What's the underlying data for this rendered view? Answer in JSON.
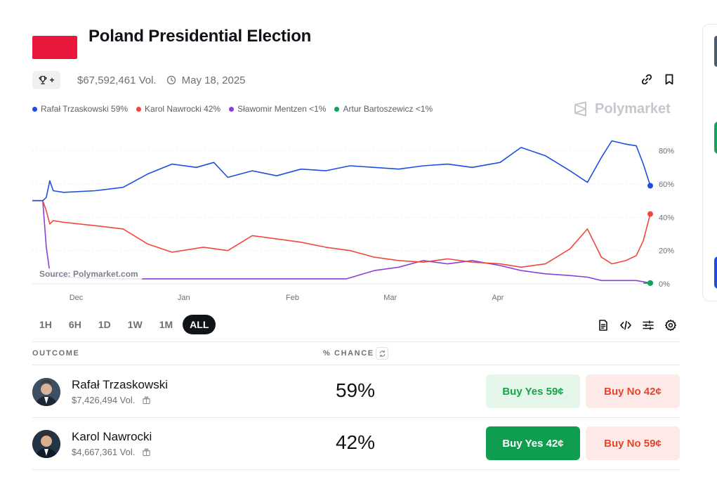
{
  "market": {
    "title": "Poland Presidential Election",
    "flag_color": "#e8183b",
    "volume": "$67,592,461 Vol.",
    "date": "May 18, 2025",
    "trophy_suffix": "+"
  },
  "legend": [
    {
      "label": "Rafał Trzaskowski 59%",
      "color": "#1c4fe0"
    },
    {
      "label": "Karol Nawrocki 42%",
      "color": "#f0483e"
    },
    {
      "label": "Sławomir Mentzen <1%",
      "color": "#8c3fd9"
    },
    {
      "label": "Artur Bartoszewicz <1%",
      "color": "#0ea55b"
    }
  ],
  "brand": "Polymarket",
  "chart_source": "Source: Polymarket.com",
  "chart_data": {
    "type": "line",
    "x_range": [
      "2024-11-22",
      "2025-05-18"
    ],
    "x_ticks": [
      "Dec",
      "Jan",
      "Feb",
      "Mar",
      "Apr"
    ],
    "x_tick_dates": [
      "2024-12-01",
      "2025-01-01",
      "2025-02-01",
      "2025-03-01",
      "2025-04-01"
    ],
    "y_ticks": [
      "0%",
      "20%",
      "40%",
      "60%",
      "80%"
    ],
    "ylim": [
      0,
      90
    ],
    "grid": "dotted",
    "series": [
      {
        "name": "Rafał Trzaskowski",
        "color": "#1c4fe0",
        "points": [
          [
            "2024-11-22",
            50
          ],
          [
            "2024-11-25",
            50
          ],
          [
            "2024-11-26",
            52
          ],
          [
            "2024-11-27",
            62
          ],
          [
            "2024-11-28",
            56
          ],
          [
            "2024-12-01",
            55
          ],
          [
            "2024-12-10",
            56
          ],
          [
            "2024-12-18",
            58
          ],
          [
            "2024-12-25",
            66
          ],
          [
            "2025-01-01",
            72
          ],
          [
            "2025-01-08",
            70
          ],
          [
            "2025-01-13",
            73
          ],
          [
            "2025-01-17",
            64
          ],
          [
            "2025-01-24",
            68
          ],
          [
            "2025-01-31",
            65
          ],
          [
            "2025-02-07",
            69
          ],
          [
            "2025-02-14",
            68
          ],
          [
            "2025-02-21",
            71
          ],
          [
            "2025-02-28",
            70
          ],
          [
            "2025-03-07",
            69
          ],
          [
            "2025-03-14",
            71
          ],
          [
            "2025-03-21",
            72
          ],
          [
            "2025-03-28",
            70
          ],
          [
            "2025-04-05",
            73
          ],
          [
            "2025-04-11",
            82
          ],
          [
            "2025-04-18",
            77
          ],
          [
            "2025-04-25",
            68
          ],
          [
            "2025-04-30",
            61
          ],
          [
            "2025-05-04",
            76
          ],
          [
            "2025-05-07",
            86
          ],
          [
            "2025-05-11",
            84
          ],
          [
            "2025-05-14",
            83
          ],
          [
            "2025-05-16",
            72
          ],
          [
            "2025-05-18",
            59
          ]
        ]
      },
      {
        "name": "Karol Nawrocki",
        "color": "#f0483e",
        "points": [
          [
            "2024-11-22",
            50
          ],
          [
            "2024-11-25",
            50
          ],
          [
            "2024-11-26",
            44
          ],
          [
            "2024-11-27",
            36
          ],
          [
            "2024-11-28",
            38
          ],
          [
            "2024-12-01",
            37
          ],
          [
            "2024-12-10",
            35
          ],
          [
            "2024-12-18",
            33
          ],
          [
            "2024-12-25",
            24
          ],
          [
            "2025-01-01",
            19
          ],
          [
            "2025-01-10",
            22
          ],
          [
            "2025-01-17",
            20
          ],
          [
            "2025-01-24",
            29
          ],
          [
            "2025-01-31",
            27
          ],
          [
            "2025-02-07",
            25
          ],
          [
            "2025-02-14",
            22
          ],
          [
            "2025-02-21",
            20
          ],
          [
            "2025-02-28",
            16
          ],
          [
            "2025-03-07",
            14
          ],
          [
            "2025-03-14",
            13
          ],
          [
            "2025-03-21",
            15
          ],
          [
            "2025-03-28",
            13
          ],
          [
            "2025-04-05",
            12
          ],
          [
            "2025-04-11",
            10
          ],
          [
            "2025-04-18",
            12
          ],
          [
            "2025-04-25",
            21
          ],
          [
            "2025-04-30",
            33
          ],
          [
            "2025-05-04",
            16
          ],
          [
            "2025-05-07",
            12
          ],
          [
            "2025-05-11",
            14
          ],
          [
            "2025-05-14",
            17
          ],
          [
            "2025-05-16",
            26
          ],
          [
            "2025-05-18",
            42
          ]
        ]
      },
      {
        "name": "Sławomir Mentzen",
        "color": "#8c3fd9",
        "points": [
          [
            "2024-11-22",
            50
          ],
          [
            "2024-11-25",
            50
          ],
          [
            "2024-11-26",
            22
          ],
          [
            "2024-11-27",
            7
          ],
          [
            "2024-11-28",
            5
          ],
          [
            "2024-12-01",
            4
          ],
          [
            "2024-12-15",
            3
          ],
          [
            "2025-01-01",
            3
          ],
          [
            "2025-02-01",
            3
          ],
          [
            "2025-02-20",
            3
          ],
          [
            "2025-02-28",
            8
          ],
          [
            "2025-03-07",
            10
          ],
          [
            "2025-03-14",
            14
          ],
          [
            "2025-03-21",
            12
          ],
          [
            "2025-03-28",
            14
          ],
          [
            "2025-04-05",
            11
          ],
          [
            "2025-04-11",
            8
          ],
          [
            "2025-04-18",
            6
          ],
          [
            "2025-04-25",
            5
          ],
          [
            "2025-04-30",
            4
          ],
          [
            "2025-05-04",
            2
          ],
          [
            "2025-05-10",
            2
          ],
          [
            "2025-05-14",
            2
          ],
          [
            "2025-05-18",
            0.5
          ]
        ]
      },
      {
        "name": "Artur Bartoszewicz",
        "color": "#0ea55b",
        "points": [
          [
            "2025-05-16",
            0.4
          ],
          [
            "2025-05-18",
            0.4
          ]
        ]
      }
    ]
  },
  "time_ranges": [
    "1H",
    "6H",
    "1D",
    "1W",
    "1M",
    "ALL"
  ],
  "active_range": "ALL",
  "table": {
    "outcome_header": "OUTCOME",
    "chance_header": "% CHANCE",
    "rows": [
      {
        "name": "Rafał Trzaskowski",
        "volume": "$7,426,494 Vol.",
        "chance": "59%",
        "buy_yes": "Buy Yes 59¢",
        "buy_no": "Buy No 42¢"
      },
      {
        "name": "Karol Nawrocki",
        "volume": "$4,667,361 Vol.",
        "chance": "42%",
        "buy_yes": "Buy Yes 42¢",
        "buy_no": "Buy No 59¢"
      }
    ]
  }
}
